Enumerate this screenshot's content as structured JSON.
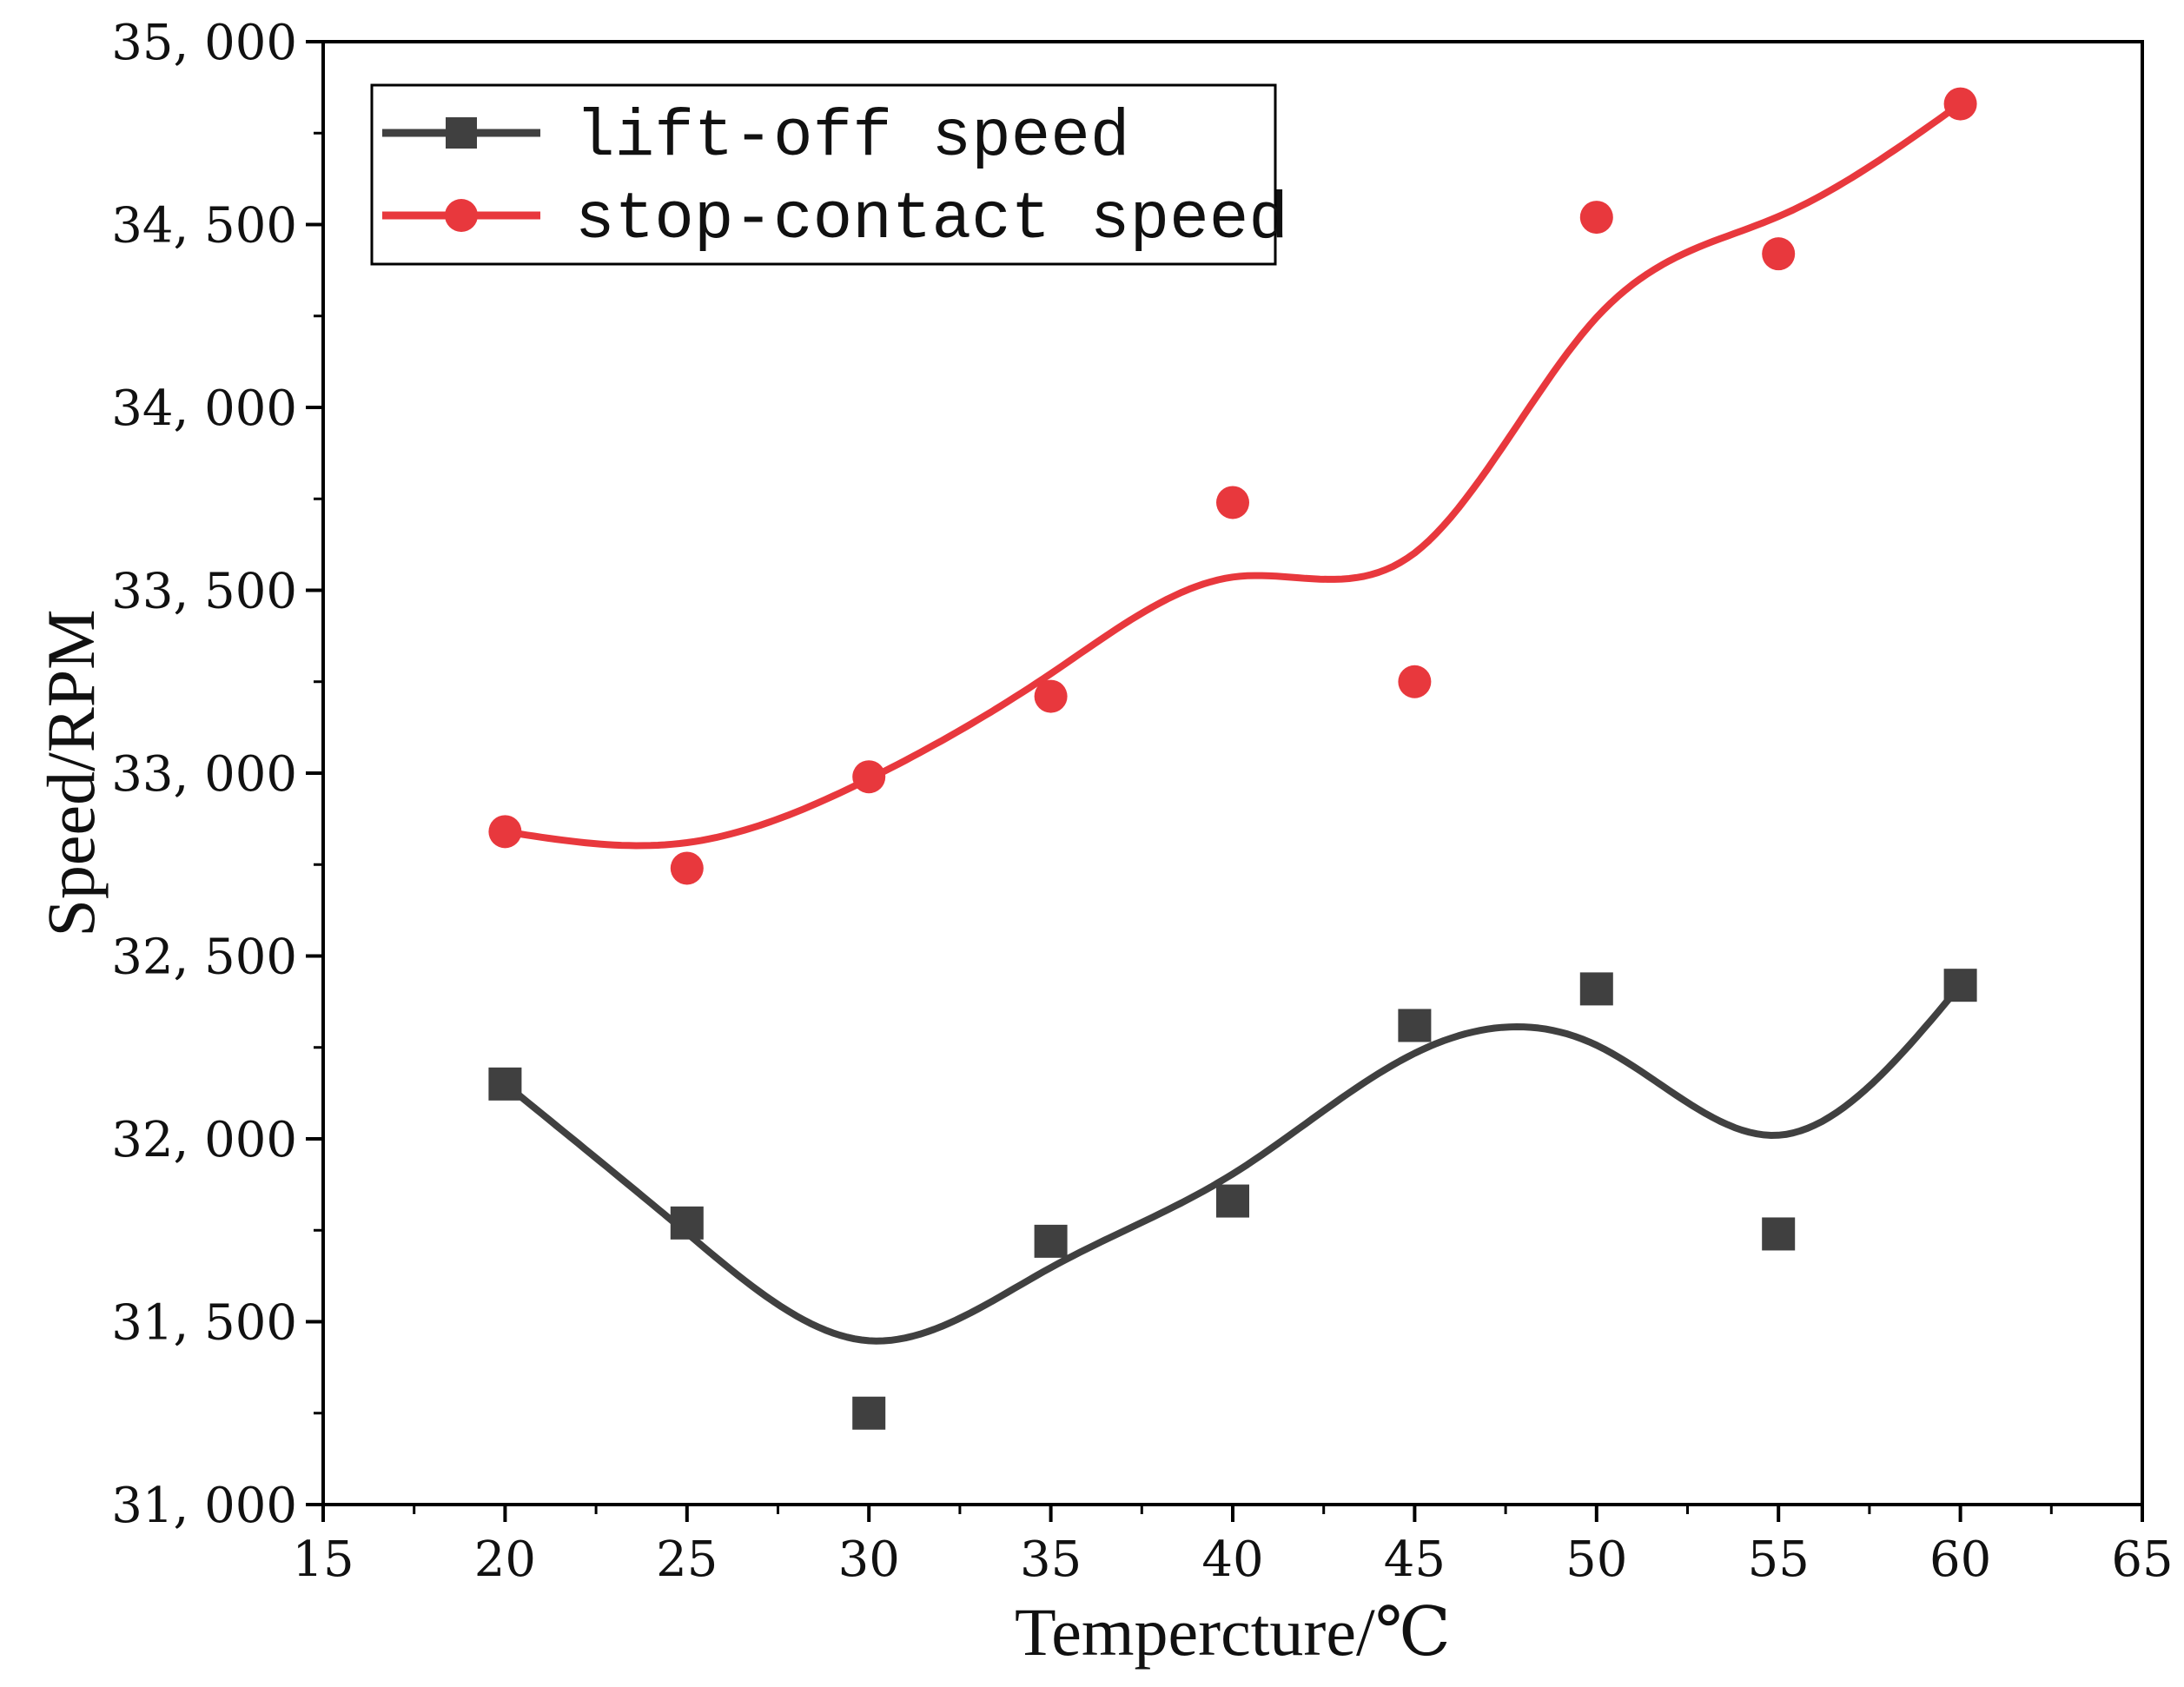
{
  "chart_data": {
    "type": "line",
    "title": "",
    "xlabel": "Tempercture/℃",
    "ylabel": "Speed/RPM",
    "xlim": [
      15,
      65
    ],
    "ylim": [
      31000,
      35000
    ],
    "xticks": [
      15,
      20,
      25,
      30,
      35,
      40,
      45,
      50,
      55,
      60,
      65
    ],
    "xtick_labels": [
      "15",
      "20",
      "25",
      "30",
      "35",
      "40",
      "45",
      "50",
      "55",
      "60",
      "65"
    ],
    "yticks": [
      31000,
      31500,
      32000,
      32500,
      33000,
      33500,
      34000,
      34500,
      35000
    ],
    "ytick_labels": [
      "31, 000",
      "31, 500",
      "32, 000",
      "32, 500",
      "33, 000",
      "33, 500",
      "34, 000",
      "34, 500",
      "35, 000"
    ],
    "grid": false,
    "legend_position": "top-left",
    "x": [
      20,
      25,
      30,
      35,
      40,
      45,
      50,
      55,
      60
    ],
    "series": [
      {
        "name": "lift-off speed",
        "marker": "square",
        "color": "#404040",
        "values": [
          32150,
          31770,
          31250,
          31720,
          31830,
          32310,
          32410,
          31740,
          32420
        ]
      },
      {
        "name": "stop-contact speed",
        "marker": "circle",
        "color": "#e8383d",
        "values": [
          32840,
          32740,
          32990,
          33210,
          33740,
          33250,
          34520,
          34420,
          34830
        ]
      }
    ]
  }
}
